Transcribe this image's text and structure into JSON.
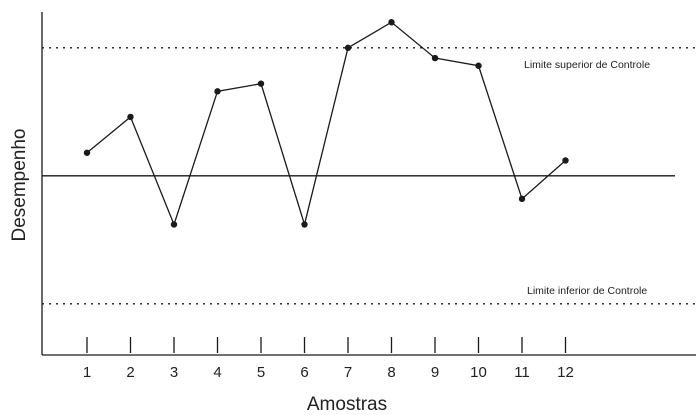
{
  "chart_data": {
    "type": "line",
    "title": "",
    "xlabel": "Amostras",
    "ylabel": "Desempenho",
    "categories": [
      "1",
      "2",
      "3",
      "4",
      "5",
      "6",
      "7",
      "8",
      "9",
      "10",
      "11",
      "12"
    ],
    "series": [
      {
        "values": [
          0.9,
          2.3,
          -1.9,
          3.3,
          3.6,
          -1.9,
          5.0,
          6.0,
          4.6,
          4.3,
          -0.9,
          0.6
        ]
      }
    ],
    "center_line": 0,
    "upper_control_limit": 5.0,
    "lower_control_limit": -5.0,
    "upper_limit_label": "Limite superior de Controle",
    "lower_limit_label": "Limite inferior de Controle",
    "ylim": [
      -7.0,
      6.4
    ],
    "grid": false,
    "legend": "none",
    "colors": {
      "line": "#1a1a1a",
      "axis": "#1a1a1a",
      "text": "#222222"
    }
  }
}
